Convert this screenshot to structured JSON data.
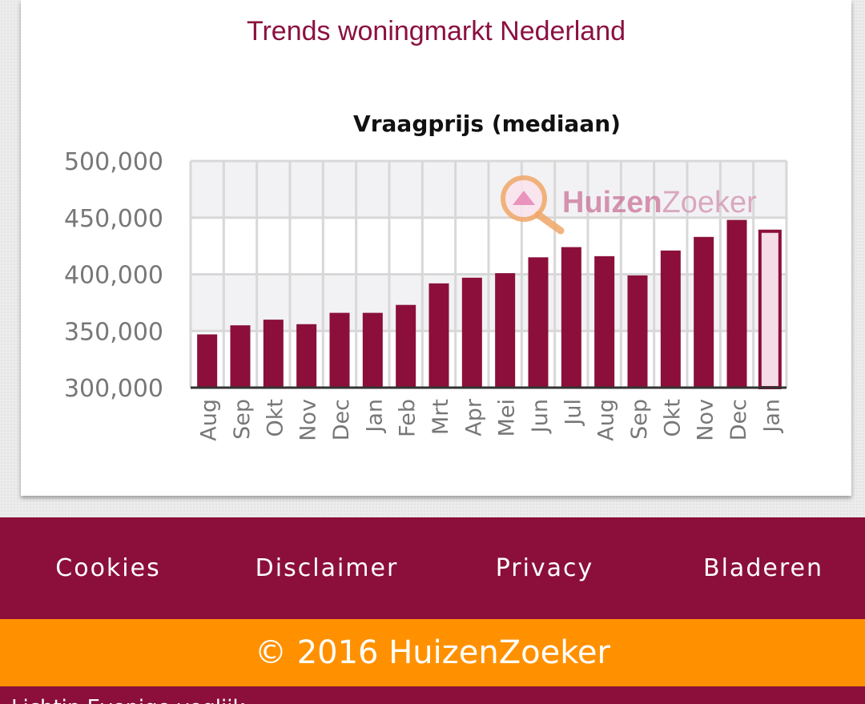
{
  "page": {
    "card_title": "Trends woningmarkt Nederland"
  },
  "chart_data": {
    "type": "bar",
    "title": "Vraagprijs (mediaan)",
    "xlabel": "",
    "ylabel": "",
    "categories": [
      "Aug",
      "Sep",
      "Okt",
      "Nov",
      "Dec",
      "Jan",
      "Feb",
      "Mrt",
      "Apr",
      "Mei",
      "Jun",
      "Jul",
      "Aug",
      "Sep",
      "Okt",
      "Nov",
      "Dec",
      "Jan"
    ],
    "values": [
      347000,
      355000,
      360000,
      356000,
      366000,
      366000,
      373000,
      392000,
      397000,
      401000,
      415000,
      424000,
      416000,
      399000,
      421000,
      433000,
      448000,
      438000
    ],
    "highlight_last": true,
    "ylim": [
      300000,
      500000
    ],
    "yticks": [
      300000,
      350000,
      400000,
      450000,
      500000
    ],
    "ytick_labels": [
      "300,000",
      "350,000",
      "400,000",
      "450,000",
      "500,000"
    ],
    "grid": true,
    "colors": {
      "bar": "#8b0f3a",
      "bar_last_fill": "#f6dce6",
      "plot_bg": "#f2f2f4",
      "grid": "#d8d8d8"
    },
    "watermark": {
      "part1": "Huizen",
      "part2": "Zoeker"
    }
  },
  "footer": {
    "nav": [
      "Cookies",
      "Disclaimer",
      "Privacy",
      "Bladeren"
    ],
    "copyright": "© 2016 HuizenZoeker",
    "bottom_text": "Lichtin Evenige veglijk"
  }
}
